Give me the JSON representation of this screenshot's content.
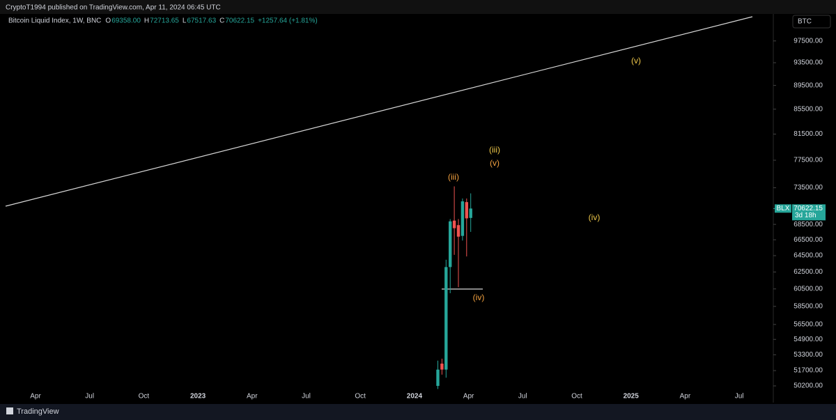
{
  "header": {
    "publisher": "CryptoT1994 published on TradingView.com, Apr 11, 2024 06:45 UTC"
  },
  "footer": {
    "brand": "TradingView"
  },
  "chart_data": {
    "type": "candlestick",
    "title": "Bitcoin Liquid Index, 1W, BNC",
    "ohlc_legend": [
      {
        "key": "O",
        "text": "69358.00"
      },
      {
        "key": "H",
        "text": "72713.65"
      },
      {
        "key": "L",
        "text": "67517.63"
      },
      {
        "key": "C",
        "text": "70622.15"
      }
    ],
    "change": "+1257.64 (+1.81%)",
    "currency": "BTC",
    "last_price": {
      "symbol": "BLX",
      "label": "70622.15",
      "countdown": "3d 18h"
    },
    "log_scale": true,
    "up_color": "#26a69a",
    "down_color": "#ef5350",
    "candles": {
      "open": [
        50200,
        52400,
        51800,
        63100,
        69000,
        68400,
        67000,
        71500,
        69358
      ],
      "high": [
        52700,
        52900,
        64000,
        69200,
        73700,
        69200,
        72000,
        72000,
        72713.65
      ],
      "low": [
        49900,
        51300,
        51000,
        60000,
        64600,
        60700,
        66400,
        64400,
        67517.63
      ],
      "close": [
        51800,
        51800,
        63100,
        68900,
        68000,
        66900,
        71600,
        69300,
        70622.15
      ]
    },
    "ylim": [
      49800,
      102700
    ],
    "yticks": [
      {
        "value": 50200,
        "label": "50200.00"
      },
      {
        "value": 51700,
        "label": "51700.00"
      },
      {
        "value": 53300,
        "label": "53300.00"
      },
      {
        "value": 54900,
        "label": "54900.00"
      },
      {
        "value": 56500,
        "label": "56500.00"
      },
      {
        "value": 58500,
        "label": "58500.00"
      },
      {
        "value": 60500,
        "label": "60500.00"
      },
      {
        "value": 62500,
        "label": "62500.00"
      },
      {
        "value": 64500,
        "label": "64500.00"
      },
      {
        "value": 66500,
        "label": "66500.00"
      },
      {
        "value": 68500,
        "label": "68500.00"
      },
      {
        "value": 73500,
        "label": "73500.00"
      },
      {
        "value": 77500,
        "label": "77500.00"
      },
      {
        "value": 81500,
        "label": "81500.00"
      },
      {
        "value": 85500,
        "label": "85500.00"
      },
      {
        "value": 89500,
        "label": "89500.00"
      },
      {
        "value": 93500,
        "label": "93500.00"
      },
      {
        "value": 97500,
        "label": "97500.00"
      }
    ],
    "xticks": [
      "Apr",
      "Jul",
      "Oct",
      "2023",
      "Apr",
      "Jul",
      "Oct",
      "2024",
      "Apr",
      "Jul",
      "Oct",
      "2025",
      "Apr",
      "Jul"
    ],
    "annotations": [
      {
        "text": "(v)",
        "color": "#f0c94a"
      },
      {
        "text": "(iii)",
        "color": "#f0c94a"
      },
      {
        "text": "(v)",
        "color": "#f5a340"
      },
      {
        "text": "(iii)",
        "color": "#f5a340"
      },
      {
        "text": "(iv)",
        "color": "#f0c94a"
      },
      {
        "text": "(iv)",
        "color": "#f5a340"
      }
    ]
  }
}
